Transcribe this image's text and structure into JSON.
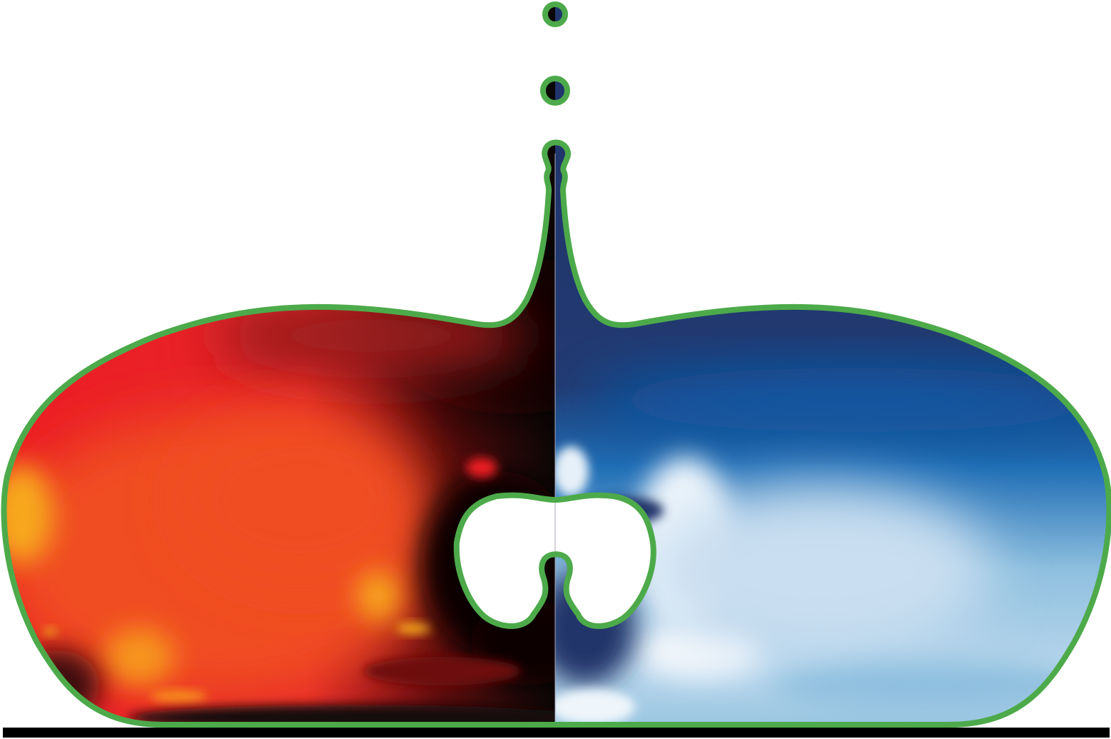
{
  "figure": {
    "background": "#ffffff",
    "interface_color": "#4daa4a",
    "substrate_color": "#000000",
    "left_half": {
      "colormap": "hot",
      "colors": {
        "black": "#0b0606",
        "dark_red": "#7a1212",
        "red": "#ec1c24",
        "orange": "#f04e23",
        "yellow": "#f7a81b"
      }
    },
    "right_half": {
      "colormap": "blues",
      "colors": {
        "navy": "#20356b",
        "blue": "#1f6db5",
        "light_blue": "#8fc0df",
        "white": "#f4f8fc"
      }
    },
    "satellite_droplets": 2,
    "enclosed_bubbles": 1
  }
}
